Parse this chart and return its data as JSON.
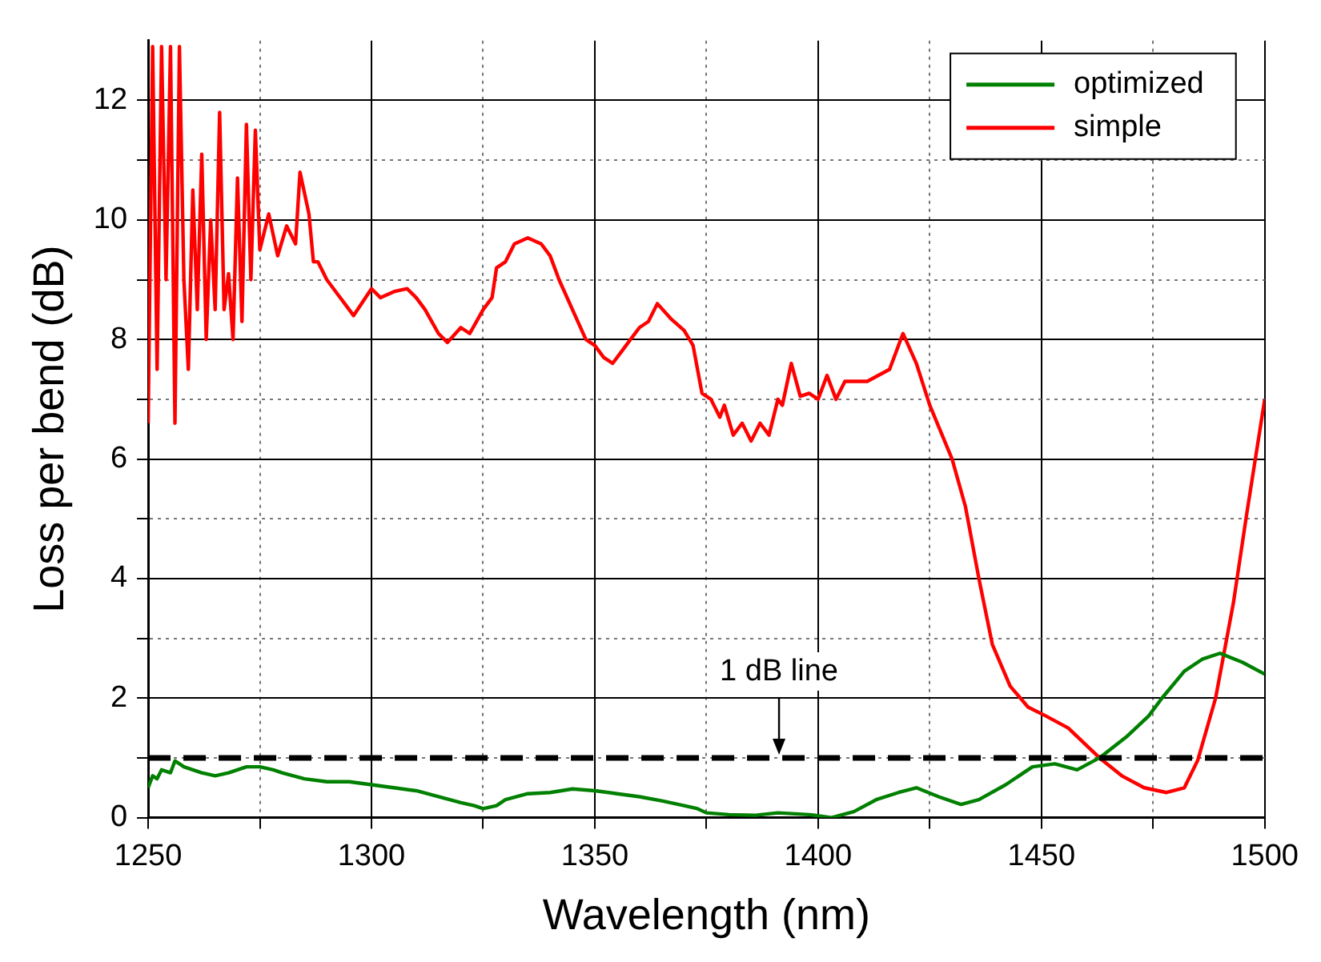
{
  "chart_data": {
    "type": "line",
    "xlabel": "Wavelength (nm)",
    "ylabel": "Loss per bend (dB)",
    "xlim": [
      1250,
      1500
    ],
    "ylim": [
      0,
      13
    ],
    "xticks": [
      1250,
      {
        "value": 1275,
        "label": null
      },
      1300,
      {
        "value": 1325,
        "label": null
      },
      1350,
      {
        "value": 1375,
        "label": null
      },
      1400,
      {
        "value": 1425,
        "label": null
      },
      1450,
      {
        "value": 1475,
        "label": null
      },
      1500
    ],
    "yticks": [
      0,
      {
        "value": 1,
        "label": null
      },
      2,
      {
        "value": 3,
        "label": null
      },
      4,
      {
        "value": 5,
        "label": null
      },
      6,
      {
        "value": 7,
        "label": null
      },
      8,
      {
        "value": 9,
        "label": null
      },
      10,
      {
        "value": 11,
        "label": null
      },
      12
    ],
    "grid": true,
    "legend": "top right",
    "marker": "none",
    "line_style": "solid",
    "ref_lines": [
      {
        "axis": "y",
        "value": 1,
        "label": "1 dB line",
        "color": "#000000",
        "line_style": "dashed"
      }
    ],
    "series": [
      {
        "name": "optimized",
        "color": "#008000",
        "x": [
          1250,
          1251,
          1252,
          1253,
          1255,
          1256,
          1258,
          1260,
          1262,
          1265,
          1268,
          1270,
          1272,
          1275,
          1278,
          1280,
          1285,
          1290,
          1295,
          1300,
          1305,
          1310,
          1315,
          1320,
          1323,
          1325,
          1328,
          1330,
          1335,
          1340,
          1345,
          1350,
          1355,
          1360,
          1365,
          1370,
          1373,
          1375,
          1380,
          1386,
          1391,
          1398,
          1403,
          1408,
          1413,
          1418,
          1422,
          1427,
          1432,
          1436,
          1442,
          1448,
          1453,
          1458,
          1463,
          1469,
          1474,
          1477,
          1482,
          1486,
          1490,
          1495,
          1500
        ],
        "values": [
          0.5,
          0.7,
          0.65,
          0.8,
          0.75,
          0.95,
          0.85,
          0.8,
          0.75,
          0.7,
          0.75,
          0.8,
          0.85,
          0.85,
          0.8,
          0.75,
          0.65,
          0.6,
          0.6,
          0.55,
          0.5,
          0.45,
          0.35,
          0.25,
          0.2,
          0.15,
          0.2,
          0.3,
          0.4,
          0.42,
          0.48,
          0.45,
          0.4,
          0.35,
          0.28,
          0.2,
          0.15,
          0.08,
          0.05,
          0.04,
          0.08,
          0.05,
          0.0,
          0.1,
          0.3,
          0.42,
          0.5,
          0.35,
          0.22,
          0.3,
          0.55,
          0.85,
          0.9,
          0.8,
          1.0,
          1.35,
          1.7,
          2.0,
          2.45,
          2.65,
          2.75,
          2.6,
          2.4
        ]
      },
      {
        "name": "simple",
        "color": "#ff0000",
        "x": [
          1250,
          1251,
          1252,
          1253,
          1254,
          1255,
          1256,
          1257,
          1258,
          1259,
          1260,
          1261,
          1262,
          1263,
          1264,
          1265,
          1266,
          1267,
          1268,
          1269,
          1270,
          1271,
          1272,
          1273,
          1274,
          1275,
          1277,
          1279,
          1281,
          1283,
          1284,
          1286,
          1287,
          1288,
          1290,
          1292,
          1294,
          1296,
          1300,
          1302,
          1305,
          1308,
          1310,
          1312,
          1315,
          1317,
          1320,
          1322,
          1325,
          1327,
          1328,
          1330,
          1332,
          1335,
          1338,
          1340,
          1342,
          1345,
          1348,
          1350,
          1352,
          1354,
          1356,
          1358,
          1360,
          1362,
          1364,
          1367,
          1370,
          1372,
          1374,
          1376,
          1378,
          1379,
          1381,
          1383,
          1385,
          1387,
          1389,
          1391,
          1392,
          1394,
          1396,
          1398,
          1400,
          1402,
          1404,
          1406,
          1411,
          1416,
          1419,
          1422,
          1425,
          1430,
          1433,
          1436,
          1439,
          1443,
          1447,
          1451,
          1456,
          1463,
          1468,
          1473,
          1478,
          1482,
          1485,
          1489,
          1493,
          1496,
          1500
        ],
        "values": [
          6.6,
          12.9,
          7.5,
          12.9,
          9,
          12.9,
          6.6,
          12.9,
          9,
          7.5,
          10.5,
          8.5,
          11.1,
          8,
          10,
          8.5,
          11.8,
          8.5,
          9.1,
          8,
          10.7,
          8.3,
          11.6,
          9,
          11.5,
          9.5,
          10.1,
          9.4,
          9.9,
          9.6,
          10.8,
          10.1,
          9.3,
          9.3,
          9,
          8.8,
          8.6,
          8.4,
          8.85,
          8.7,
          8.8,
          8.85,
          8.7,
          8.5,
          8.1,
          7.95,
          8.2,
          8.1,
          8.5,
          8.7,
          9.2,
          9.3,
          9.6,
          9.7,
          9.6,
          9.4,
          9,
          8.5,
          8,
          7.9,
          7.7,
          7.6,
          7.8,
          8,
          8.2,
          8.3,
          8.6,
          8.35,
          8.15,
          7.9,
          7.1,
          7,
          6.7,
          6.9,
          6.4,
          6.6,
          6.3,
          6.6,
          6.4,
          7,
          6.9,
          7.6,
          7.05,
          7.1,
          7,
          7.4,
          7,
          7.3,
          7.3,
          7.5,
          8.1,
          7.6,
          6.9,
          6,
          5.2,
          4,
          2.9,
          2.2,
          1.85,
          1.7,
          1.5,
          1,
          0.7,
          0.5,
          0.42,
          0.5,
          0.96,
          2,
          3.6,
          5.1,
          7
        ]
      }
    ]
  }
}
